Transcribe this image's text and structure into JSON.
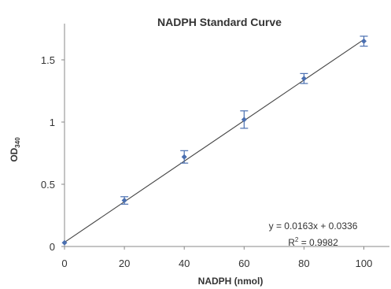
{
  "chart_data": {
    "type": "scatter",
    "title": "NADPH Standard Curve",
    "xlabel": "NADPH (nmol)",
    "ylabel_main": "OD",
    "ylabel_sub": "340",
    "x_ticks": [
      "0",
      "20",
      "40",
      "60",
      "80",
      "100"
    ],
    "y_ticks": [
      "0",
      "0.5",
      "1",
      "1.5"
    ],
    "xlim": [
      0,
      105
    ],
    "ylim": [
      0,
      1.75
    ],
    "grid": false,
    "marker_color": "#4a6fb0",
    "line_color": "#444444",
    "points": [
      {
        "x": 0,
        "y": 0.03,
        "err": 0.0
      },
      {
        "x": 20,
        "y": 0.37,
        "err": 0.03
      },
      {
        "x": 40,
        "y": 0.72,
        "err": 0.05
      },
      {
        "x": 60,
        "y": 1.02,
        "err": 0.07
      },
      {
        "x": 80,
        "y": 1.35,
        "err": 0.04
      },
      {
        "x": 100,
        "y": 1.65,
        "err": 0.04
      }
    ],
    "trendline": {
      "slope": 0.0163,
      "intercept": 0.0336
    },
    "equation": "y = 0.0163x + 0.0336",
    "r_squared_label": "R",
    "r_squared_sup": "2",
    "r_squared_value": " = 0.9982"
  }
}
